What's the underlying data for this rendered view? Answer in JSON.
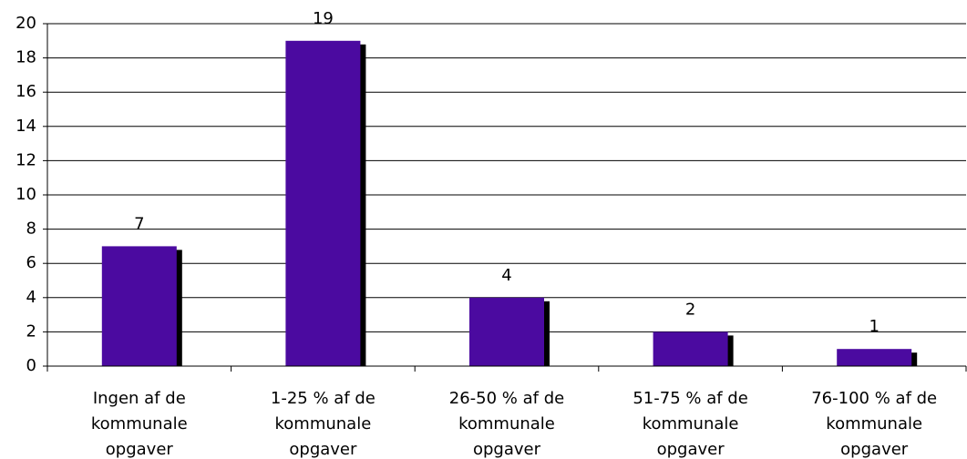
{
  "chart_data": {
    "type": "bar",
    "categories": [
      "Ingen af de kommunale opgaver",
      "1-25 % af de kommunale opgaver",
      "26-50 % af de kommunale opgaver",
      "51-75 % af de kommunale opgaver",
      "76-100 % af de kommunale opgaver"
    ],
    "values": [
      7,
      19,
      4,
      2,
      1
    ],
    "color": "#4b0aa0",
    "ylim": [
      0,
      20
    ],
    "yticks": [
      0,
      2,
      4,
      6,
      8,
      10,
      12,
      14,
      16,
      18,
      20
    ],
    "grid": true
  }
}
